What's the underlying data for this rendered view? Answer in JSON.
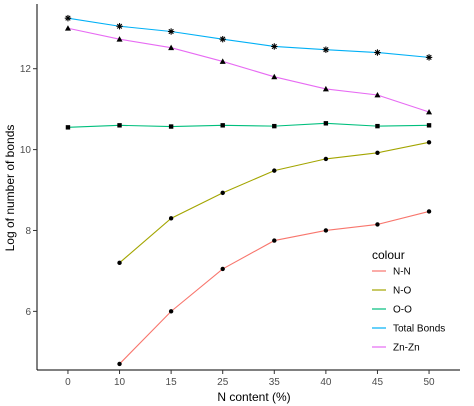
{
  "chart_data": {
    "type": "line",
    "xlabel": "N content (%)",
    "ylabel": "Log of number of bonds",
    "categories": [
      "0",
      "10",
      "15",
      "25",
      "35",
      "40",
      "45",
      "50"
    ],
    "ylim": [
      4.55,
      13.6
    ],
    "yticks": [
      6,
      8,
      10,
      12
    ],
    "grid": false,
    "legend": {
      "title": "colour",
      "position": "right-inside-bottom",
      "entries": [
        "N-N",
        "N-O",
        "O-O",
        "Total Bonds",
        "Zn-Zn"
      ]
    },
    "series": [
      {
        "name": "N-N",
        "color": "#F8766D",
        "marker": "circle",
        "values": [
          null,
          4.7,
          6.0,
          7.05,
          7.75,
          8.0,
          8.15,
          8.47
        ]
      },
      {
        "name": "N-O",
        "color": "#A3A500",
        "marker": "circle",
        "values": [
          null,
          7.2,
          8.3,
          8.93,
          9.48,
          9.77,
          9.92,
          10.18
        ]
      },
      {
        "name": "O-O",
        "color": "#00BF7D",
        "marker": "square",
        "values": [
          10.55,
          10.6,
          10.57,
          10.6,
          10.58,
          10.65,
          10.58,
          10.6
        ]
      },
      {
        "name": "Total Bonds",
        "color": "#00B0F6",
        "marker": "asterisk",
        "values": [
          13.25,
          13.05,
          12.92,
          12.73,
          12.55,
          12.47,
          12.4,
          12.28
        ]
      },
      {
        "name": "Zn-Zn",
        "color": "#E76BF3",
        "marker": "triangle",
        "values": [
          13.0,
          12.73,
          12.52,
          12.18,
          11.8,
          11.5,
          11.35,
          10.93
        ]
      }
    ]
  }
}
